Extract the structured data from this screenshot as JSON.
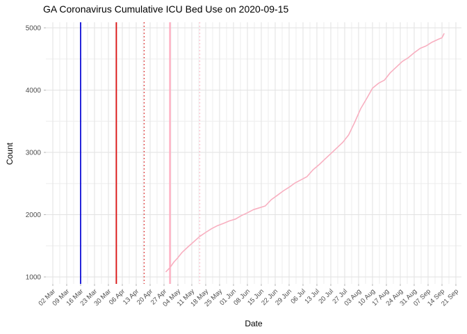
{
  "chart_data": {
    "type": "line",
    "title": "GA Coronavirus Cumulative ICU Bed Use on 2020-09-15",
    "xlabel": "Date",
    "ylabel": "Count",
    "legend": "none",
    "grid": "on",
    "background": "#ffffff",
    "grid_major_color": "#e2e2e2",
    "grid_minor_color": "#eeeeee",
    "axis_text_color": "#4d4d4d",
    "x_first_tick_date": "2020-03-02",
    "x_tick_interval_days": 7,
    "x_tick_labels": [
      "02 Mar",
      "09 Mar",
      "16 Mar",
      "23 Mar",
      "30 Mar",
      "06 Apr",
      "13 Apr",
      "20 Apr",
      "27 Apr",
      "04 May",
      "11 May",
      "18 May",
      "25 May",
      "01 Jun",
      "08 Jun",
      "15 Jun",
      "22 Jun",
      "29 Jun",
      "06 Jul",
      "13 Jul",
      "20 Jul",
      "27 Jul",
      "03 Aug",
      "10 Aug",
      "17 Aug",
      "24 Aug",
      "31 Aug",
      "07 Sep",
      "14 Sep",
      "21 Sep"
    ],
    "y_ticks": [
      1000,
      2000,
      3000,
      4000,
      5000
    ],
    "y_minor_ticks": [
      1500,
      2500,
      3500,
      4500
    ],
    "ylim": [
      888,
      5073
    ],
    "vlines": [
      {
        "name": "vline-blue-solid",
        "date": "2020-03-16",
        "color": "#0d0dd6",
        "style": "solid",
        "width": 1.8
      },
      {
        "name": "vline-red-solid",
        "date": "2020-04-03",
        "color": "#dd1111",
        "style": "solid",
        "width": 1.8
      },
      {
        "name": "vline-red-dotted",
        "date": "2020-04-17",
        "color": "#dd2b2b",
        "style": "dotted",
        "width": 1.4
      },
      {
        "name": "vline-pink-solid",
        "date": "2020-04-30",
        "color": "#ffaabf",
        "style": "solid",
        "width": 2.2
      },
      {
        "name": "vline-pink-dotted",
        "date": "2020-05-15",
        "color": "#ffb9c8",
        "style": "dotted",
        "width": 1.4
      }
    ],
    "series": [
      {
        "name": "cumulative-icu-bed-use",
        "color": "#f8afc0",
        "points": [
          {
            "date": "2020-04-28",
            "value": 1085
          },
          {
            "date": "2020-04-30",
            "value": 1150
          },
          {
            "date": "2020-05-02",
            "value": 1240
          },
          {
            "date": "2020-05-04",
            "value": 1310
          },
          {
            "date": "2020-05-06",
            "value": 1390
          },
          {
            "date": "2020-05-09",
            "value": 1480
          },
          {
            "date": "2020-05-12",
            "value": 1565
          },
          {
            "date": "2020-05-15",
            "value": 1650
          },
          {
            "date": "2020-05-18",
            "value": 1715
          },
          {
            "date": "2020-05-21",
            "value": 1775
          },
          {
            "date": "2020-05-24",
            "value": 1825
          },
          {
            "date": "2020-05-27",
            "value": 1860
          },
          {
            "date": "2020-05-30",
            "value": 1900
          },
          {
            "date": "2020-06-02",
            "value": 1930
          },
          {
            "date": "2020-06-05",
            "value": 1985
          },
          {
            "date": "2020-06-08",
            "value": 2030
          },
          {
            "date": "2020-06-11",
            "value": 2080
          },
          {
            "date": "2020-06-14",
            "value": 2110
          },
          {
            "date": "2020-06-17",
            "value": 2140
          },
          {
            "date": "2020-06-20",
            "value": 2240
          },
          {
            "date": "2020-06-23",
            "value": 2310
          },
          {
            "date": "2020-06-26",
            "value": 2380
          },
          {
            "date": "2020-06-29",
            "value": 2440
          },
          {
            "date": "2020-07-02",
            "value": 2510
          },
          {
            "date": "2020-07-05",
            "value": 2560
          },
          {
            "date": "2020-07-08",
            "value": 2610
          },
          {
            "date": "2020-07-11",
            "value": 2720
          },
          {
            "date": "2020-07-14",
            "value": 2800
          },
          {
            "date": "2020-07-17",
            "value": 2890
          },
          {
            "date": "2020-07-20",
            "value": 2980
          },
          {
            "date": "2020-07-23",
            "value": 3070
          },
          {
            "date": "2020-07-26",
            "value": 3160
          },
          {
            "date": "2020-07-29",
            "value": 3280
          },
          {
            "date": "2020-08-01",
            "value": 3480
          },
          {
            "date": "2020-08-04",
            "value": 3700
          },
          {
            "date": "2020-08-07",
            "value": 3860
          },
          {
            "date": "2020-08-10",
            "value": 4030
          },
          {
            "date": "2020-08-13",
            "value": 4110
          },
          {
            "date": "2020-08-16",
            "value": 4160
          },
          {
            "date": "2020-08-19",
            "value": 4280
          },
          {
            "date": "2020-08-22",
            "value": 4370
          },
          {
            "date": "2020-08-25",
            "value": 4460
          },
          {
            "date": "2020-08-28",
            "value": 4520
          },
          {
            "date": "2020-08-31",
            "value": 4600
          },
          {
            "date": "2020-09-03",
            "value": 4670
          },
          {
            "date": "2020-09-06",
            "value": 4710
          },
          {
            "date": "2020-09-09",
            "value": 4770
          },
          {
            "date": "2020-09-12",
            "value": 4815
          },
          {
            "date": "2020-09-14",
            "value": 4840
          },
          {
            "date": "2020-09-15",
            "value": 4905
          }
        ]
      }
    ]
  }
}
